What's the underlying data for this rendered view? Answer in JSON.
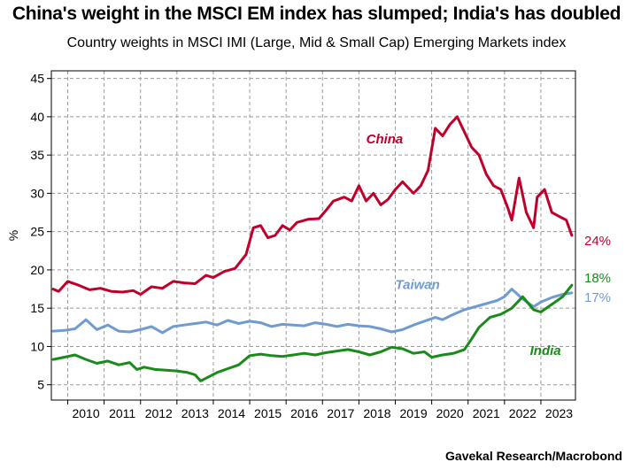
{
  "header": {
    "title": "China's weight in the MSCI EM index has slumped; India's has doubled",
    "subtitle": "Country weights in MSCI IMI (Large, Mid & Small Cap) Emerging Markets index"
  },
  "footer": {
    "source": "Gavekal Research/Macrobond"
  },
  "chart_data": {
    "type": "line",
    "title": "China's weight in the MSCI EM index has slumped; India's has doubled",
    "subtitle": "Country weights in MSCI IMI (Large, Mid & Small Cap) Emerging Markets index",
    "ylabel": "%",
    "xlabel": "",
    "ylim": [
      3,
      46
    ],
    "xlim": [
      2009.55,
      2023.95
    ],
    "yticks": [
      5,
      10,
      15,
      20,
      25,
      30,
      35,
      40,
      45
    ],
    "xticks": [
      "2010",
      "2011",
      "2012",
      "2013",
      "2014",
      "2015",
      "2016",
      "2017",
      "2018",
      "2019",
      "2020",
      "2021",
      "2022",
      "2023"
    ],
    "grid": true,
    "series": [
      {
        "name": "China",
        "color": "#c0002a",
        "end_label": "24%",
        "x": [
          2009.6,
          2009.75,
          2010.0,
          2010.3,
          2010.6,
          2010.9,
          2011.2,
          2011.5,
          2011.8,
          2012.0,
          2012.3,
          2012.6,
          2012.9,
          2013.2,
          2013.5,
          2013.8,
          2014.0,
          2014.3,
          2014.6,
          2014.9,
          2015.1,
          2015.3,
          2015.5,
          2015.7,
          2015.9,
          2016.1,
          2016.3,
          2016.6,
          2016.9,
          2017.1,
          2017.3,
          2017.6,
          2017.8,
          2018.0,
          2018.2,
          2018.4,
          2018.6,
          2018.8,
          2019.0,
          2019.2,
          2019.5,
          2019.7,
          2019.9,
          2020.1,
          2020.3,
          2020.5,
          2020.7,
          2020.9,
          2021.1,
          2021.3,
          2021.5,
          2021.7,
          2021.9,
          2022.1,
          2022.2,
          2022.4,
          2022.6,
          2022.8,
          2022.9,
          2023.1,
          2023.3,
          2023.5,
          2023.7,
          2023.85
        ],
        "y": [
          17.5,
          17.2,
          18.5,
          18.0,
          17.4,
          17.6,
          17.2,
          17.1,
          17.3,
          16.8,
          17.8,
          17.6,
          18.5,
          18.3,
          18.2,
          19.3,
          19.0,
          19.8,
          20.2,
          22.0,
          25.5,
          25.8,
          24.2,
          24.5,
          25.8,
          25.2,
          26.2,
          26.6,
          26.7,
          27.8,
          29.0,
          29.5,
          29.0,
          31.0,
          29.0,
          30.0,
          28.5,
          29.2,
          30.5,
          31.5,
          30.0,
          31.0,
          33.0,
          38.5,
          37.5,
          39.0,
          40.0,
          38.0,
          36.0,
          35.0,
          32.5,
          31.0,
          30.5,
          28.0,
          26.5,
          32.0,
          27.5,
          25.5,
          29.5,
          30.5,
          27.5,
          27.0,
          26.5,
          24.5
        ]
      },
      {
        "name": "Taiwan",
        "color": "#6f9bd1",
        "end_label": "17%",
        "x": [
          2009.6,
          2009.9,
          2010.2,
          2010.5,
          2010.8,
          2011.1,
          2011.4,
          2011.7,
          2012.0,
          2012.3,
          2012.6,
          2012.9,
          2013.2,
          2013.5,
          2013.8,
          2014.1,
          2014.4,
          2014.7,
          2015.0,
          2015.3,
          2015.6,
          2015.9,
          2016.2,
          2016.5,
          2016.8,
          2017.1,
          2017.4,
          2017.7,
          2018.0,
          2018.3,
          2018.6,
          2018.9,
          2019.2,
          2019.5,
          2019.8,
          2020.1,
          2020.3,
          2020.6,
          2020.9,
          2021.2,
          2021.5,
          2021.8,
          2022.0,
          2022.2,
          2022.5,
          2022.8,
          2023.0,
          2023.3,
          2023.6,
          2023.85
        ],
        "y": [
          12.0,
          12.1,
          12.3,
          13.5,
          12.2,
          12.8,
          12.0,
          11.9,
          12.2,
          12.6,
          11.8,
          12.6,
          12.8,
          13.0,
          13.2,
          12.8,
          13.4,
          13.0,
          13.3,
          13.1,
          12.6,
          12.9,
          12.8,
          12.7,
          13.1,
          12.9,
          12.6,
          12.9,
          12.7,
          12.6,
          12.3,
          11.9,
          12.2,
          12.8,
          13.3,
          13.8,
          13.5,
          14.2,
          14.8,
          15.2,
          15.6,
          16.0,
          16.5,
          17.5,
          16.2,
          15.2,
          15.8,
          16.4,
          16.8,
          17.0
        ]
      },
      {
        "name": "India",
        "color": "#1a8a1a",
        "end_label": "18%",
        "x": [
          2009.6,
          2009.9,
          2010.2,
          2010.5,
          2010.8,
          2011.1,
          2011.4,
          2011.7,
          2011.9,
          2012.1,
          2012.4,
          2012.7,
          2013.0,
          2013.3,
          2013.5,
          2013.65,
          2013.9,
          2014.1,
          2014.4,
          2014.7,
          2015.0,
          2015.3,
          2015.6,
          2015.9,
          2016.2,
          2016.5,
          2016.8,
          2017.1,
          2017.4,
          2017.7,
          2018.0,
          2018.3,
          2018.6,
          2018.9,
          2019.2,
          2019.5,
          2019.8,
          2020.0,
          2020.3,
          2020.6,
          2020.9,
          2021.1,
          2021.3,
          2021.6,
          2021.9,
          2022.2,
          2022.5,
          2022.8,
          2023.0,
          2023.3,
          2023.6,
          2023.85
        ],
        "y": [
          8.3,
          8.6,
          8.9,
          8.3,
          7.8,
          8.1,
          7.6,
          7.9,
          7.0,
          7.3,
          7.0,
          6.9,
          6.8,
          6.6,
          6.3,
          5.5,
          6.1,
          6.6,
          7.1,
          7.6,
          8.8,
          9.0,
          8.8,
          8.7,
          8.9,
          9.1,
          8.9,
          9.2,
          9.4,
          9.6,
          9.3,
          8.9,
          9.3,
          9.9,
          9.7,
          9.1,
          9.3,
          8.6,
          8.9,
          9.1,
          9.6,
          11.0,
          12.5,
          13.8,
          14.2,
          15.0,
          16.5,
          14.8,
          14.5,
          15.5,
          16.5,
          18.0
        ]
      }
    ],
    "series_labels": [
      {
        "text": "China",
        "color": "#c0002a"
      },
      {
        "text": "Taiwan",
        "color": "#6f9bd1"
      },
      {
        "text": "India",
        "color": "#1a8a1a"
      }
    ]
  }
}
